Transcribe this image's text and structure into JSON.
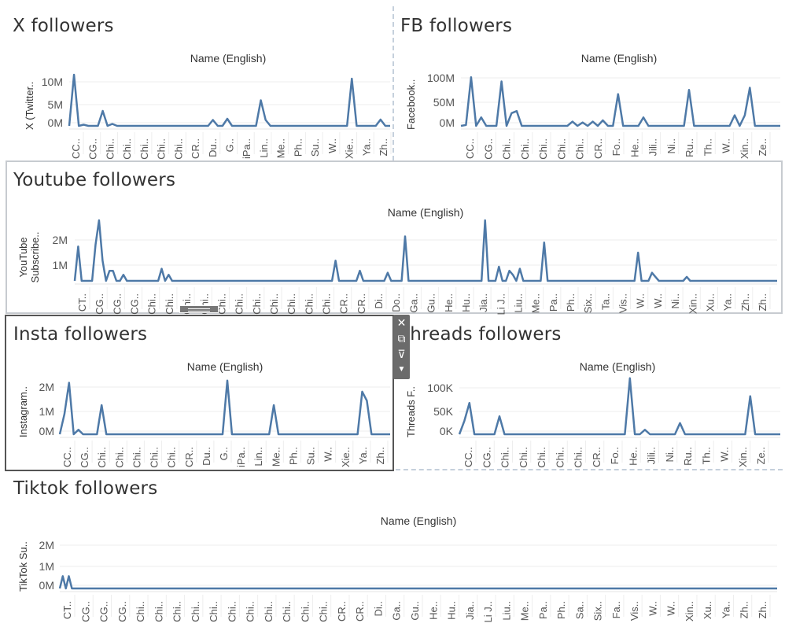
{
  "colors": {
    "line": "#4e79a7",
    "grid": "#eeeeee",
    "axis": "#333333",
    "frame": "#c5d0dc"
  },
  "panels": [
    {
      "id": "x",
      "title": "X followers",
      "x_header": "Name (English)",
      "y_label": "X (Twitter..",
      "y_ticks": [
        "10M",
        "5M",
        "0M"
      ],
      "x_ticks": [
        "CC..",
        "CG..",
        "Chi..",
        "Chi..",
        "Chi..",
        "Chi..",
        "Chi..",
        "CR..",
        "Du..",
        "G..",
        "iPa..",
        "Lin..",
        "Me..",
        "Ph..",
        "Su..",
        "W..",
        "Xie..",
        "Ya..",
        "Zh.."
      ]
    },
    {
      "id": "fb",
      "title": "FB followers",
      "x_header": "Name (English)",
      "y_label": "Facebook..",
      "y_ticks": [
        "100M",
        "50M",
        "0M"
      ],
      "x_ticks": [
        "CC..",
        "CG..",
        "Chi..",
        "Chi..",
        "Chi..",
        "Chi..",
        "Chi..",
        "CR..",
        "Fo..",
        "He..",
        "Jili..",
        "Ni..",
        "Ru..",
        "Th..",
        "W..",
        "Xin..",
        "Ze.."
      ]
    },
    {
      "id": "yt",
      "title": "Youtube followers",
      "x_header": "Name (English)",
      "y_label": "YouTube Subscribe..",
      "y_ticks": [
        "2M",
        "1M"
      ],
      "x_ticks": [
        "CT..",
        "CG..",
        "CG..",
        "CG..",
        "Chi..",
        "Chi..",
        "Chi..",
        "Chi..",
        "Chi..",
        "Chi..",
        "Chi..",
        "Chi..",
        "Chi..",
        "Chi..",
        "Chi..",
        "CR..",
        "CR..",
        "Di..",
        "Do..",
        "Ga..",
        "Gu..",
        "He..",
        "Hu..",
        "Jia..",
        "Li J..",
        "Liu..",
        "Me..",
        "Pa..",
        "Ph..",
        "Six..",
        "Ta..",
        "Vis..",
        "W..",
        "W..",
        "Ni..",
        "Xin..",
        "Xu..",
        "Ya..",
        "Zh..",
        "Zh.."
      ]
    },
    {
      "id": "insta",
      "title": "Insta followers",
      "x_header": "Name (English)",
      "y_label": "Instagram..",
      "y_ticks": [
        "2M",
        "1M",
        "0M"
      ],
      "x_ticks": [
        "CC..",
        "CG..",
        "Chi..",
        "Chi..",
        "Chi..",
        "Chi..",
        "Chi..",
        "CR..",
        "Du..",
        "G..",
        "iPa..",
        "Lin..",
        "Me..",
        "Ph..",
        "Su..",
        "W..",
        "Xie..",
        "Ya..",
        "Zh.."
      ]
    },
    {
      "id": "threads",
      "title": "Threads followers",
      "x_header": "Name (English)",
      "y_label": "Threads F..",
      "y_ticks": [
        "100K",
        "50K",
        "0K"
      ],
      "x_ticks": [
        "CC..",
        "CG..",
        "Chi..",
        "Chi..",
        "Chi..",
        "Chi..",
        "Chi..",
        "CR..",
        "Fo..",
        "He..",
        "Jili..",
        "Ni..",
        "Ru..",
        "Th..",
        "W..",
        "Xin..",
        "Ze.."
      ]
    },
    {
      "id": "tt",
      "title": "Tiktok followers",
      "x_header": "Name (English)",
      "y_label": "TikTok Su..",
      "y_ticks": [
        "2M",
        "1M",
        "0M"
      ],
      "x_ticks": [
        "CT..",
        "CG..",
        "CG..",
        "CG..",
        "Chi..",
        "Chi..",
        "Chi..",
        "Chi..",
        "Chi..",
        "Chi..",
        "Chi..",
        "Chi..",
        "Chi..",
        "Chi..",
        "Chi..",
        "CR..",
        "CR..",
        "Di..",
        "Ga..",
        "Gu..",
        "He..",
        "Hu..",
        "Jia..",
        "Li J..",
        "Liu..",
        "Me..",
        "Pa..",
        "Ph..",
        "Sa..",
        "Six..",
        "Fa..",
        "Vis..",
        "W..",
        "W..",
        "Xin..",
        "Xu..",
        "Ya..",
        "Zh..",
        "Zh.."
      ]
    }
  ],
  "toolbar": {
    "close_icon": "close-icon",
    "popout_icon": "popout-icon",
    "filter_icon": "filter-icon",
    "more_icon": "more-icon"
  },
  "chart_data": [
    {
      "type": "line",
      "title": "X followers",
      "xlabel": "Name (English)",
      "ylabel": "X (Twitter..",
      "ylim": [
        0,
        14000000
      ],
      "series": [
        {
          "values": [
            0,
            13000000,
            0,
            300000,
            0,
            0,
            0,
            3800000,
            0,
            500000,
            0,
            0,
            0,
            0,
            0,
            0,
            0,
            0,
            0,
            0,
            0,
            0,
            0,
            0,
            0,
            0,
            0,
            0,
            0,
            0,
            1500000,
            0,
            0,
            1800000,
            0,
            0,
            0,
            0,
            0,
            0,
            6500000,
            1500000,
            0,
            0,
            0,
            0,
            0,
            0,
            0,
            0,
            0,
            0,
            0,
            0,
            0,
            0,
            0,
            0,
            0,
            12000000,
            0,
            0,
            0,
            0,
            0,
            1600000,
            0,
            0
          ]
        }
      ]
    },
    {
      "type": "line",
      "title": "FB followers",
      "xlabel": "Name (English)",
      "ylabel": "Facebook..",
      "ylim": [
        0,
        130000000
      ],
      "series": [
        {
          "values": [
            0,
            2000000,
            115000000,
            0,
            20000000,
            0,
            0,
            0,
            105000000,
            0,
            30000000,
            35000000,
            0,
            0,
            0,
            0,
            0,
            0,
            0,
            0,
            0,
            0,
            10000000,
            0,
            8000000,
            0,
            10000000,
            0,
            13000000,
            0,
            0,
            75000000,
            0,
            0,
            0,
            0,
            20000000,
            0,
            0,
            0,
            0,
            0,
            0,
            0,
            0,
            85000000,
            0,
            0,
            0,
            0,
            0,
            0,
            0,
            0,
            25000000,
            0,
            25000000,
            90000000,
            0,
            0,
            0,
            0,
            0,
            0
          ]
        }
      ]
    },
    {
      "type": "line",
      "title": "Youtube followers",
      "xlabel": "Name (English)",
      "ylabel": "YouTube Subscribe..",
      "ylim": [
        0,
        3000000
      ],
      "series": [
        {
          "values": [
            0,
            1700000,
            0,
            0,
            0,
            0,
            1800000,
            3000000,
            1000000,
            0,
            500000,
            500000,
            0,
            0,
            300000,
            0,
            0,
            0,
            0,
            0,
            0,
            0,
            0,
            0,
            0,
            600000,
            0,
            300000,
            0,
            0,
            0,
            0,
            0,
            0,
            0,
            0,
            0,
            0,
            0,
            0,
            0,
            0,
            0,
            0,
            0,
            0,
            0,
            0,
            0,
            0,
            0,
            0,
            0,
            0,
            0,
            0,
            0,
            0,
            0,
            0,
            0,
            0,
            0,
            0,
            0,
            0,
            0,
            0,
            0,
            0,
            0,
            0,
            0,
            0,
            0,
            1000000,
            0,
            0,
            0,
            0,
            0,
            0,
            500000,
            0,
            0,
            0,
            0,
            0,
            0,
            0,
            400000,
            0,
            0,
            0,
            0,
            2200000,
            0,
            0,
            0,
            0,
            0,
            0,
            0,
            0,
            0,
            0,
            0,
            0,
            0,
            0,
            0,
            0,
            0,
            0,
            0,
            0,
            0,
            0,
            3000000,
            0,
            0,
            0,
            700000,
            0,
            0,
            500000,
            300000,
            0,
            600000,
            0,
            0,
            0,
            0,
            0,
            0,
            1900000,
            0,
            0,
            0,
            0,
            0,
            0,
            0,
            0,
            0,
            0,
            0,
            0,
            0,
            0,
            0,
            0,
            0,
            0,
            0,
            0,
            0,
            0,
            0,
            0,
            0,
            0,
            1400000,
            0,
            0,
            0,
            400000,
            200000,
            0,
            0,
            0,
            0,
            0,
            0,
            0,
            0,
            200000,
            0,
            0,
            0,
            0,
            0,
            0,
            0,
            0,
            0,
            0,
            0,
            0,
            0,
            0,
            0,
            0,
            0,
            0,
            0,
            0,
            0,
            0,
            0,
            0,
            0,
            0
          ]
        }
      ]
    },
    {
      "type": "line",
      "title": "Insta followers",
      "xlabel": "Name (English)",
      "ylabel": "Instagram..",
      "ylim": [
        0,
        2600000
      ],
      "series": [
        {
          "values": [
            0,
            900000,
            2300000,
            0,
            200000,
            0,
            0,
            0,
            0,
            1300000,
            0,
            0,
            0,
            0,
            0,
            0,
            0,
            0,
            0,
            0,
            0,
            0,
            0,
            0,
            0,
            0,
            0,
            0,
            0,
            0,
            0,
            0,
            0,
            0,
            0,
            0,
            2400000,
            0,
            0,
            0,
            0,
            0,
            0,
            0,
            0,
            0,
            1300000,
            0,
            0,
            0,
            0,
            0,
            0,
            0,
            0,
            0,
            0,
            0,
            0,
            0,
            0,
            0,
            0,
            0,
            0,
            1900000,
            1500000,
            0,
            0,
            0,
            0,
            0
          ]
        }
      ]
    },
    {
      "type": "line",
      "title": "Threads followers",
      "xlabel": "Name (English)",
      "ylabel": "Threads F..",
      "ylim": [
        0,
        130000
      ],
      "series": [
        {
          "values": [
            0,
            30000,
            70000,
            0,
            0,
            0,
            0,
            0,
            40000,
            0,
            0,
            0,
            0,
            0,
            0,
            0,
            0,
            0,
            0,
            0,
            0,
            0,
            0,
            0,
            0,
            0,
            0,
            0,
            0,
            0,
            0,
            0,
            0,
            0,
            125000,
            0,
            0,
            10000,
            0,
            0,
            0,
            0,
            0,
            0,
            25000,
            0,
            0,
            0,
            0,
            0,
            0,
            0,
            0,
            0,
            0,
            0,
            0,
            0,
            85000,
            0,
            0,
            0,
            0,
            0,
            0
          ]
        }
      ]
    },
    {
      "type": "line",
      "title": "Tiktok followers",
      "xlabel": "Name (English)",
      "ylabel": "TikTok Su..",
      "ylim": [
        0,
        2800000
      ],
      "series": [
        {
          "values": [
            0,
            600000,
            0,
            600000,
            0,
            0,
            0,
            0,
            0,
            0,
            0,
            0,
            0,
            0,
            0,
            0,
            0,
            0,
            0,
            0,
            0,
            0,
            0,
            0,
            0,
            0,
            0,
            0,
            0,
            0,
            0,
            0,
            0,
            0,
            0,
            0,
            0,
            0,
            0,
            0,
            0,
            0,
            0,
            0,
            0,
            0,
            0,
            0,
            0,
            0,
            0,
            0,
            0,
            0,
            0,
            0,
            0,
            0,
            0,
            0,
            0,
            0,
            0,
            0,
            0,
            0,
            0,
            0,
            0,
            0,
            0,
            0,
            0,
            0,
            0,
            0,
            0,
            0,
            0,
            0,
            0,
            0,
            0,
            0,
            0,
            0,
            0,
            0,
            0,
            0,
            0,
            0,
            0,
            0,
            0,
            0,
            0,
            0,
            0,
            0,
            0,
            0,
            0,
            0,
            0,
            0,
            0,
            0,
            0,
            0,
            0,
            0,
            0,
            0,
            0,
            0,
            0,
            0,
            0,
            0,
            0,
            0,
            0,
            0,
            0,
            0,
            0,
            0,
            0,
            0,
            0,
            0,
            0,
            0,
            0,
            0,
            0,
            0,
            0,
            0,
            0,
            0,
            0,
            0,
            0,
            0,
            0,
            0,
            0,
            0,
            0,
            0,
            0,
            0,
            0,
            0,
            0,
            0,
            0,
            0,
            0,
            0,
            0,
            0,
            0,
            0,
            0,
            0,
            0,
            0,
            0,
            0,
            0,
            0,
            0,
            0,
            0,
            0,
            0,
            0,
            0,
            0,
            0,
            0,
            0,
            0,
            0,
            0,
            0,
            0,
            0,
            0,
            0,
            0,
            0,
            0,
            0,
            0,
            0,
            0,
            0,
            0,
            0,
            0,
            0,
            0,
            0,
            0,
            0,
            0,
            0,
            0,
            0,
            0,
            0,
            0,
            0,
            0,
            0,
            0,
            0,
            0,
            0,
            0,
            0,
            0,
            0,
            0,
            0,
            0,
            0,
            0,
            0,
            0,
            0,
            0,
            0,
            0
          ]
        }
      ]
    }
  ]
}
